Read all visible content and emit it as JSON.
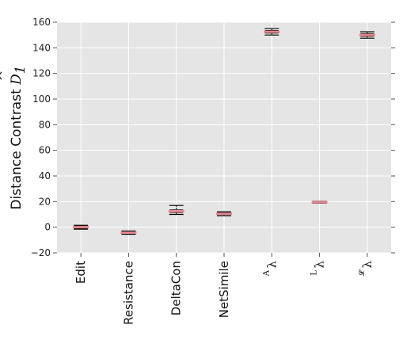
{
  "chart_data": {
    "type": "box",
    "title": "",
    "xlabel": "",
    "ylabel": {
      "prefix": "Distance Contrast",
      "symbol": "D",
      "subscript": "1",
      "hat": "^"
    },
    "ylim": [
      -20,
      160
    ],
    "yticks": [
      -20,
      0,
      20,
      40,
      60,
      80,
      100,
      120,
      140,
      160
    ],
    "grid": true,
    "background": "#e5e5e5",
    "colors": {
      "box": "#000000",
      "median": "#e6868a",
      "grid": "#ffffff"
    },
    "categories": [
      {
        "label": "Edit",
        "kind": "text"
      },
      {
        "label": "Resistance",
        "kind": "text"
      },
      {
        "label": "DeltaCon",
        "kind": "text"
      },
      {
        "label": "NetSimile",
        "kind": "text"
      },
      {
        "label": "λ",
        "sup": "A",
        "kind": "symbol"
      },
      {
        "label": "λ",
        "sup": "L",
        "kind": "symbol"
      },
      {
        "label": "λ",
        "sup": "𝓛",
        "kind": "symbol"
      }
    ],
    "boxes": [
      {
        "whisker_low": -1.5,
        "q1": -1.0,
        "median": 0.0,
        "q3": 0.8,
        "whisker_high": 1.5
      },
      {
        "whisker_low": -5.5,
        "q1": -4.8,
        "median": -4.2,
        "q3": -3.6,
        "whisker_high": -3.0
      },
      {
        "whisker_low": 10.0,
        "q1": 11.5,
        "median": 12.5,
        "q3": 13.5,
        "whisker_high": 17.0
      },
      {
        "whisker_low": 9.0,
        "q1": 10.0,
        "median": 10.5,
        "q3": 11.2,
        "whisker_high": 12.0
      },
      {
        "whisker_low": 150.0,
        "q1": 151.5,
        "median": 152.5,
        "q3": 153.5,
        "whisker_high": 155.0
      },
      {
        "whisker_low": 18.8,
        "q1": 19.2,
        "median": 19.5,
        "q3": 19.8,
        "whisker_high": 20.2
      },
      {
        "whisker_low": 147.5,
        "q1": 149.0,
        "median": 150.0,
        "q3": 151.0,
        "whisker_high": 152.5
      }
    ]
  }
}
